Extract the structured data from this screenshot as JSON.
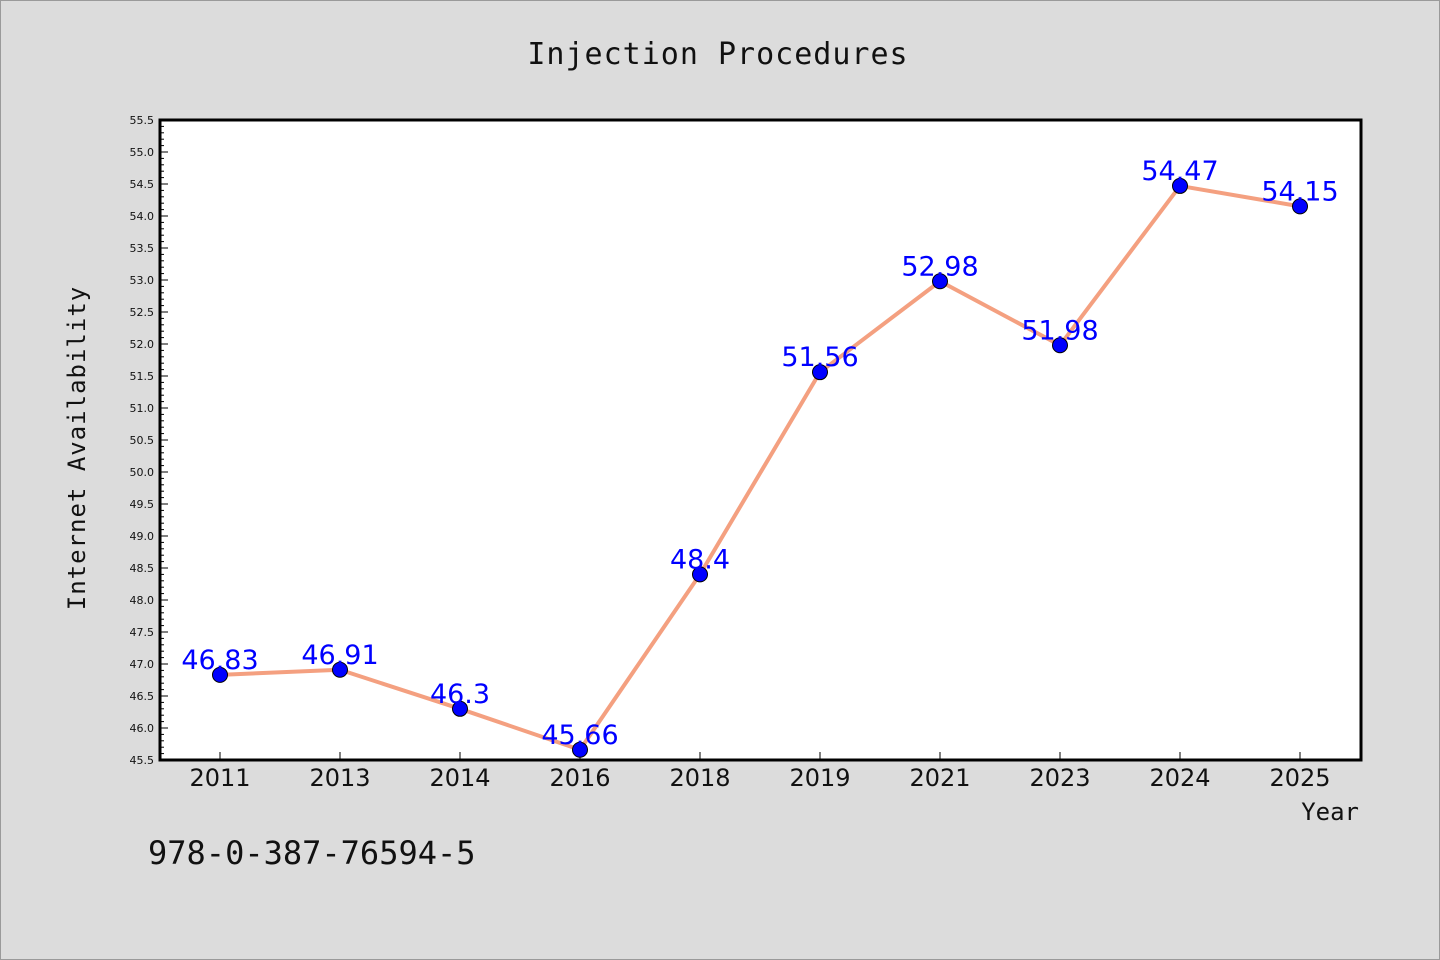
{
  "chart_data": {
    "type": "line",
    "title": "Injection Procedures",
    "xlabel": "Year",
    "ylabel": "Internet Availability",
    "categories": [
      "2011",
      "2013",
      "2014",
      "2016",
      "2018",
      "2019",
      "2021",
      "2023",
      "2024",
      "2025"
    ],
    "series": [
      {
        "values": [
          46.83,
          46.91,
          46.3,
          45.66,
          48.4,
          51.56,
          52.98,
          51.98,
          54.47,
          54.15
        ],
        "labels": [
          "46.83",
          "46.91",
          "46.3",
          "45.66",
          "48.4",
          "51.56",
          "52.98",
          "51.98",
          "54.47",
          "54.15"
        ]
      }
    ],
    "ylim": [
      45.5,
      55.5
    ],
    "y_ticks": [
      "45.5",
      "46.0",
      "46.5",
      "47.0",
      "47.5",
      "48.0",
      "48.5",
      "49.0",
      "49.5",
      "50.0",
      "50.5",
      "51.0",
      "51.5",
      "52.0",
      "52.5",
      "53.0",
      "53.5",
      "54.0",
      "54.5",
      "55.0",
      "55.5"
    ],
    "grid": false,
    "line_color": "#f4a080",
    "marker_color": "#0000ff",
    "label_color": "#0000ff"
  },
  "annotation": "978-0-387-76594-5",
  "colors": {
    "background": "#dcdcdc",
    "plot_background": "#ffffff"
  }
}
